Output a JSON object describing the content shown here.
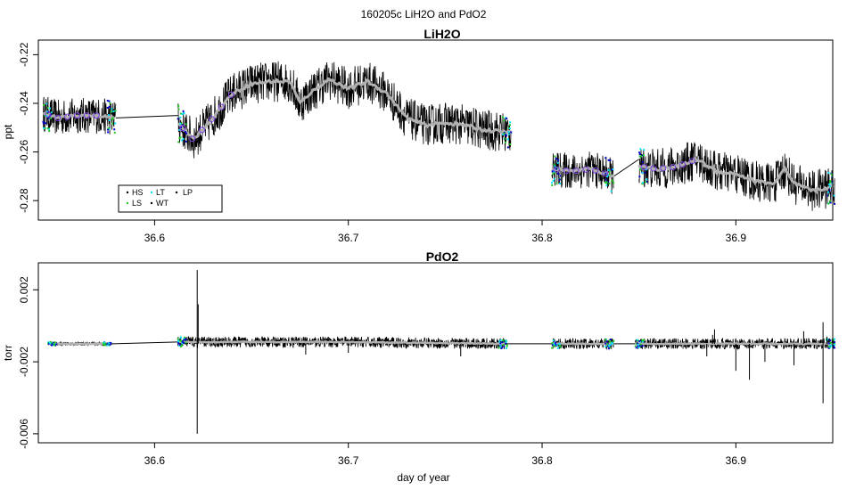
{
  "main_title": "160205c   LiH2O and PdO2",
  "colors": {
    "HS": "#000000",
    "LS": "#22cc22",
    "LT": "#00e5ff",
    "WT": "#000000",
    "LP": "#000000",
    "smooth": "#b0b0b0",
    "circle": "#7b3fe4",
    "blue": "#0000cc"
  },
  "chart_data": [
    {
      "type": "line",
      "title": "LiH2O",
      "ylabel": "ppt",
      "xlabel": "",
      "xlim": [
        36.54,
        36.95
      ],
      "ylim": [
        -0.288,
        -0.214
      ],
      "xticks": [
        36.6,
        36.7,
        36.8,
        36.9
      ],
      "xtick_labels": [
        "36.6",
        "36.7",
        "36.8",
        "36.9"
      ],
      "yticks": [
        -0.22,
        -0.24,
        -0.26,
        -0.28
      ],
      "ytick_labels": [
        "-0.22",
        "-0.24",
        "-0.26",
        "-0.28"
      ],
      "legend": {
        "placement": "bottom-left",
        "entries": [
          "HS",
          "LT",
          "LP",
          "LS",
          "WT"
        ]
      },
      "series": [
        {
          "segments": [
            {
              "x0": 36.5425,
              "x1": 36.58,
              "trend": [
                [
                  36.5425,
                  -0.244
                ],
                [
                  36.55,
                  -0.246
                ],
                [
                  36.56,
                  -0.245
                ],
                [
                  36.57,
                  -0.245
                ],
                [
                  36.58,
                  -0.246
                ]
              ],
              "noise": 0.0075
            },
            {
              "x0": 36.612,
              "x1": 36.784,
              "trend": [
                [
                  36.612,
                  -0.248
                ],
                [
                  36.62,
                  -0.255
                ],
                [
                  36.63,
                  -0.246
                ],
                [
                  36.64,
                  -0.236
                ],
                [
                  36.65,
                  -0.232
                ],
                [
                  36.66,
                  -0.231
                ],
                [
                  36.67,
                  -0.231
                ],
                [
                  36.675,
                  -0.24
                ],
                [
                  36.68,
                  -0.236
                ],
                [
                  36.69,
                  -0.23
                ],
                [
                  36.7,
                  -0.234
                ],
                [
                  36.71,
                  -0.231
                ],
                [
                  36.72,
                  -0.236
                ],
                [
                  36.73,
                  -0.246
                ],
                [
                  36.74,
                  -0.249
                ],
                [
                  36.75,
                  -0.248
                ],
                [
                  36.76,
                  -0.249
                ],
                [
                  36.77,
                  -0.251
                ],
                [
                  36.784,
                  -0.252
                ]
              ],
              "noise": 0.0085
            },
            {
              "x0": 36.805,
              "x1": 36.837,
              "trend": [
                [
                  36.805,
                  -0.267
                ],
                [
                  36.815,
                  -0.268
                ],
                [
                  36.825,
                  -0.267
                ],
                [
                  36.837,
                  -0.27
                ]
              ],
              "noise": 0.0075
            },
            {
              "x0": 36.85,
              "x1": 36.951,
              "trend": [
                [
                  36.85,
                  -0.266
                ],
                [
                  36.86,
                  -0.267
                ],
                [
                  36.87,
                  -0.266
                ],
                [
                  36.88,
                  -0.263
                ],
                [
                  36.89,
                  -0.268
                ],
                [
                  36.9,
                  -0.269
                ],
                [
                  36.91,
                  -0.272
                ],
                [
                  36.92,
                  -0.273
                ],
                [
                  36.925,
                  -0.267
                ],
                [
                  36.93,
                  -0.273
                ],
                [
                  36.94,
                  -0.276
                ],
                [
                  36.951,
                  -0.274
                ]
              ],
              "noise": 0.0085
            }
          ],
          "links": [
            [
              36.58,
              -0.246,
              36.612,
              -0.245
            ],
            [
              36.837,
              -0.27,
              36.85,
              -0.263
            ]
          ]
        }
      ]
    },
    {
      "type": "line",
      "title": "PdO2",
      "ylabel": "torr",
      "xlabel": "day of year",
      "xlim": [
        36.54,
        36.95
      ],
      "ylim": [
        -0.0065,
        0.0035
      ],
      "xticks": [
        36.6,
        36.7,
        36.8,
        36.9
      ],
      "xtick_labels": [
        "36.6",
        "36.7",
        "36.8",
        "36.9"
      ],
      "yticks": [
        0.002,
        -0.002,
        -0.006
      ],
      "ytick_labels": [
        "0.002",
        "-0.002",
        "-0.006"
      ],
      "series": [
        {
          "segments": [
            {
              "x0": 36.545,
              "x1": 36.578,
              "trend": [
                [
                  36.545,
                  -0.001
                ],
                [
                  36.578,
                  -0.001
                ]
              ],
              "noise": 0.0001
            },
            {
              "x0": 36.612,
              "x1": 36.782,
              "trend": [
                [
                  36.612,
                  -0.0009
                ],
                [
                  36.65,
                  -0.0009
                ],
                [
                  36.7,
                  -0.0009
                ],
                [
                  36.782,
                  -0.001
                ]
              ],
              "noise": 0.0003
            },
            {
              "x0": 36.805,
              "x1": 36.837,
              "trend": [
                [
                  36.805,
                  -0.001
                ],
                [
                  36.837,
                  -0.001
                ]
              ],
              "noise": 0.0003
            },
            {
              "x0": 36.848,
              "x1": 36.951,
              "trend": [
                [
                  36.848,
                  -0.001
                ],
                [
                  36.9,
                  -0.001
                ],
                [
                  36.951,
                  -0.001
                ]
              ],
              "noise": 0.0003
            }
          ],
          "spikes": [
            [
              36.622,
              0.0031
            ],
            [
              36.622,
              -0.006
            ],
            [
              36.6225,
              0.0012
            ],
            [
              36.678,
              -0.0016
            ],
            [
              36.7,
              -0.0015
            ],
            [
              36.758,
              -0.0017
            ],
            [
              36.756,
              -0.0012
            ],
            [
              36.885,
              -0.0017
            ],
            [
              36.9,
              -0.0025
            ],
            [
              36.907,
              -0.003
            ],
            [
              36.915,
              -0.002
            ],
            [
              36.93,
              -0.0022
            ],
            [
              36.945,
              -0.0043
            ],
            [
              36.947,
              -0.0006
            ],
            [
              36.945,
              0.0002
            ],
            [
              36.935,
              -0.0003
            ],
            [
              36.889,
              -0.0002
            ],
            [
              36.888,
              -0.0005
            ]
          ],
          "links": [
            [
              36.578,
              -0.001,
              36.612,
              -0.0009
            ],
            [
              36.782,
              -0.001,
              36.805,
              -0.001
            ],
            [
              36.837,
              -0.001,
              36.848,
              -0.001
            ]
          ]
        }
      ]
    }
  ]
}
